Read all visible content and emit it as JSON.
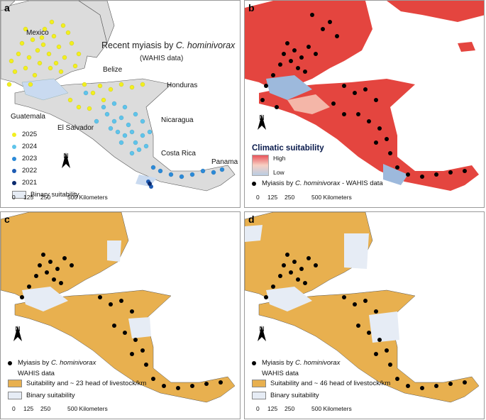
{
  "panels": {
    "a": {
      "label": "a",
      "title_prefix": "Recent myiasis by ",
      "title_species": "C. hominivorax",
      "subtitle": "(WAHIS data)",
      "countries": [
        "Mexico",
        "Belize",
        "Honduras",
        "Guatemala",
        "El Salvador",
        "Nicaragua",
        "Costa Rica",
        "Panama"
      ],
      "legend_years": [
        {
          "year": "2025",
          "color": "#f2ef1f"
        },
        {
          "year": "2024",
          "color": "#5fc4ea"
        },
        {
          "year": "2023",
          "color": "#2b8ad8"
        },
        {
          "year": "2022",
          "color": "#1d5bb3"
        },
        {
          "year": "2021",
          "color": "#0b2a6e"
        }
      ],
      "binary_label": "Binary suitability"
    },
    "b": {
      "label": "b",
      "climatic_title": "Climatic suitability",
      "high": "High",
      "low": "Low",
      "myiasis_prefix": "Myiasis by ",
      "myiasis_species": "C. hominivorax",
      "myiasis_suffix": "- WAHIS data"
    },
    "c": {
      "label": "c",
      "myiasis_prefix": "Myiasis by ",
      "myiasis_species": "C. hominivorax",
      "myiasis_line2": "WAHIS data",
      "suit_label": "Suitability and ~ 23 head of livestock/km",
      "binary_label": "Binary suitability"
    },
    "d": {
      "label": "d",
      "myiasis_prefix": "Myiasis by ",
      "myiasis_species": "C. hominivorax",
      "myiasis_line2": "WAHIS data",
      "suit_label": "Suitability and ~ 46 head of livestock/km",
      "binary_label": "Binary suitability"
    }
  },
  "scale": {
    "ticks": [
      "0",
      "125",
      "250",
      "500 Kilometers"
    ]
  },
  "north": "N",
  "colors": {
    "land_gray": "#dcdcdc",
    "suit_orange": "#e8b04f",
    "binary_light": "#e6ecf5",
    "clim_red": "#e4453f",
    "clim_blue": "#9db9dc",
    "water_light": "#c9daf0"
  }
}
